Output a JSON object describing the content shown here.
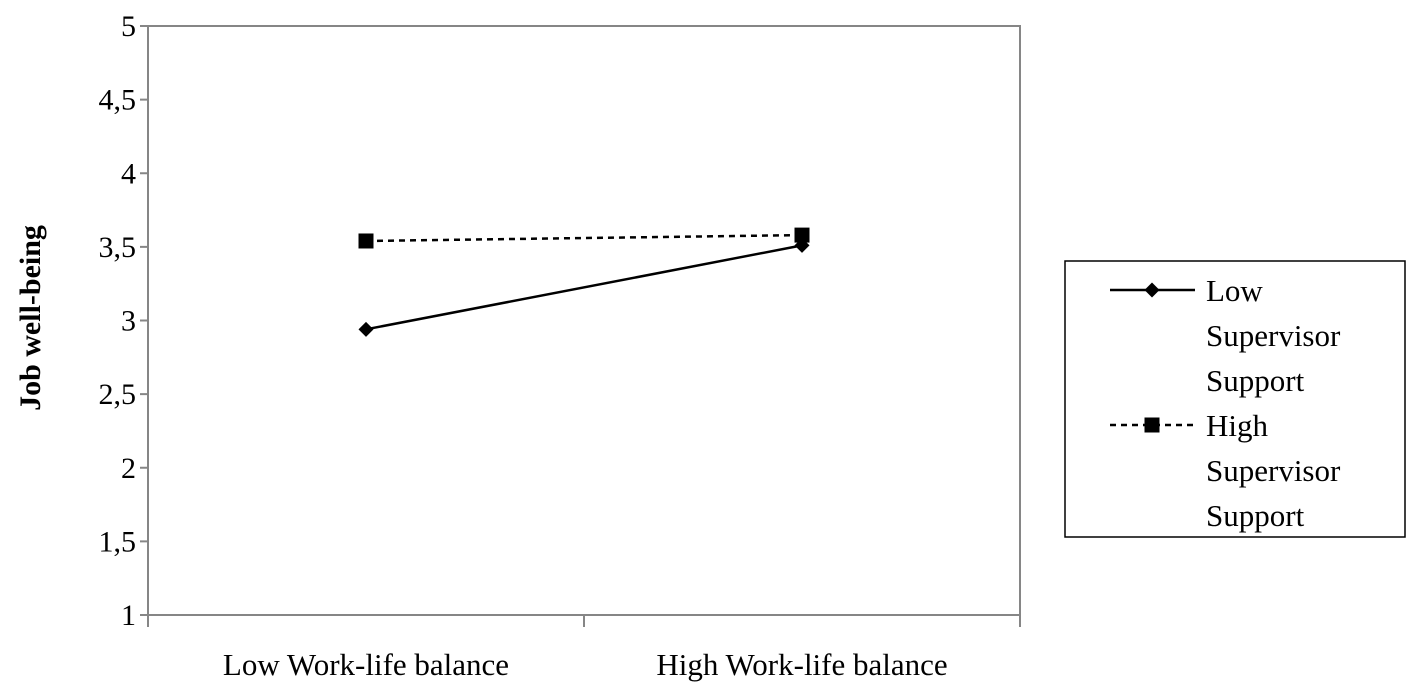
{
  "chart_data": {
    "type": "line",
    "title": "",
    "xlabel": "",
    "ylabel": "Job well-being",
    "categories": [
      "Low Work-life balance",
      "High Work-life balance"
    ],
    "ylim": [
      1,
      5
    ],
    "y_ticks": [
      "1",
      "1,5",
      "2",
      "2,5",
      "3",
      "3,5",
      "4",
      "4,5",
      "5"
    ],
    "y_tick_values": [
      1,
      1.5,
      2,
      2.5,
      3,
      3.5,
      4,
      4.5,
      5
    ],
    "grid": false,
    "legend_position": "right",
    "series": [
      {
        "name": "Low Supervisor Support",
        "legend_lines": [
          "Low",
          "Supervisor",
          "Support"
        ],
        "values": [
          2.94,
          3.51
        ],
        "line_style": "solid",
        "marker": "diamond",
        "color": "#000000"
      },
      {
        "name": "High Supervisor Support",
        "legend_lines": [
          "High",
          "Supervisor",
          "Support"
        ],
        "values": [
          3.54,
          3.58
        ],
        "line_style": "dashed",
        "marker": "square",
        "color": "#000000"
      }
    ]
  }
}
